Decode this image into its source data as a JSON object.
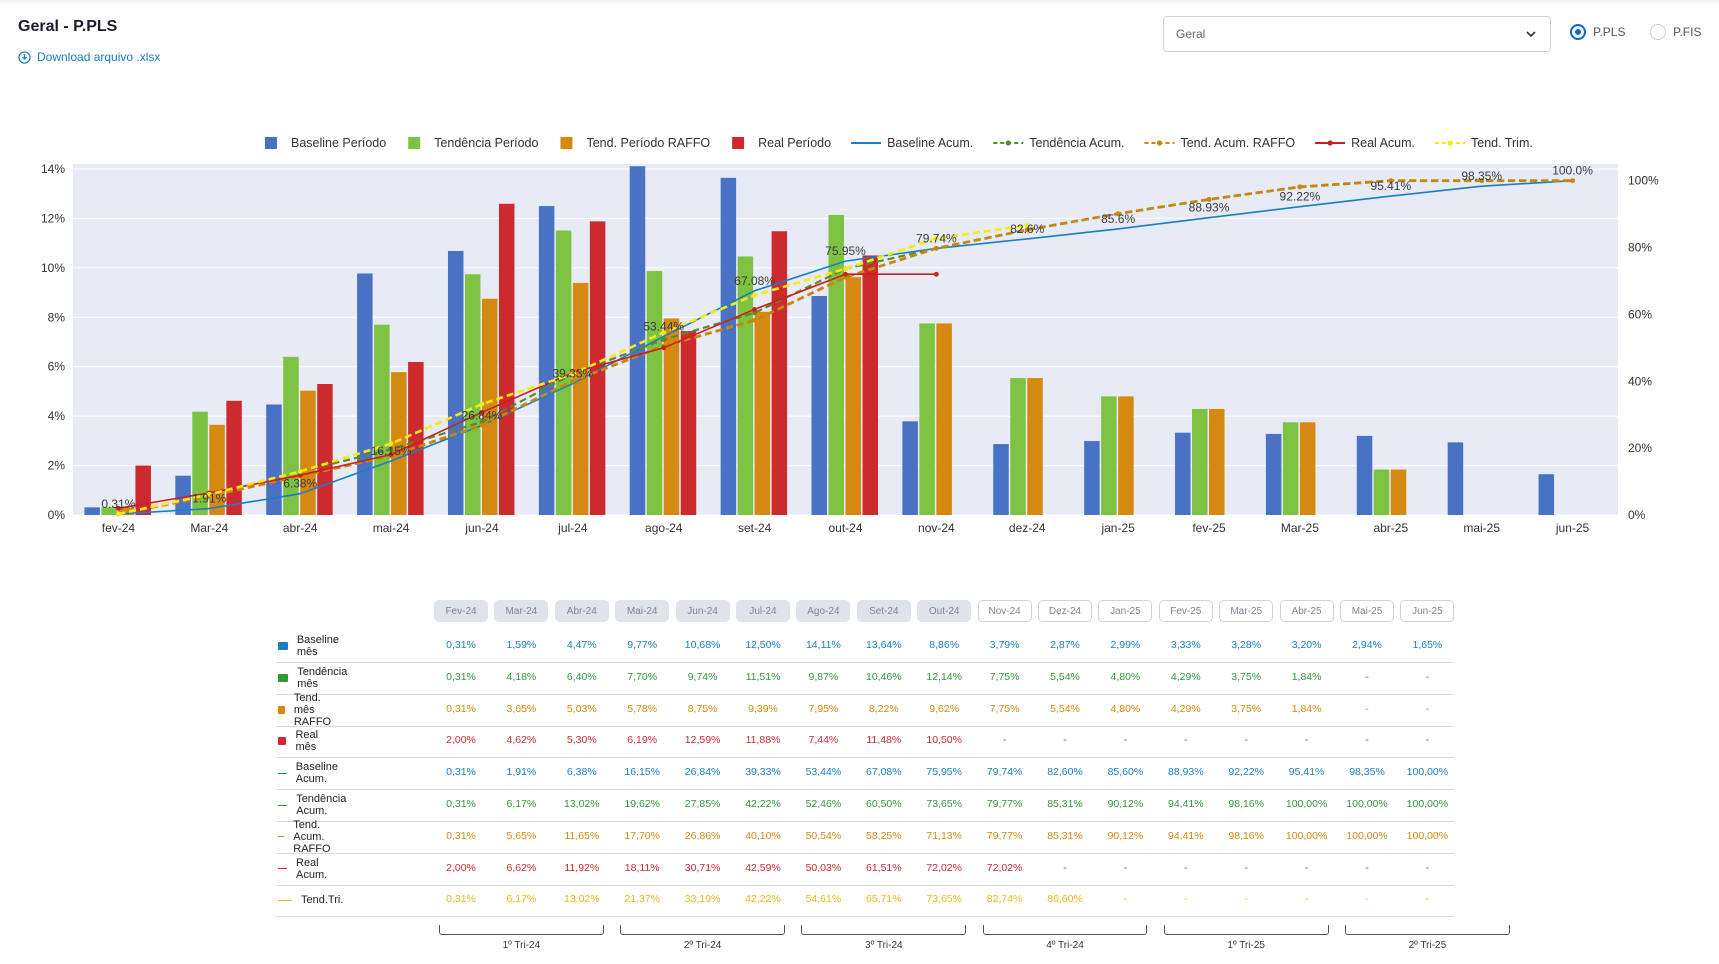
{
  "header": {
    "title": "Geral - P.PLS",
    "download_label": "Download arquivo .xlsx",
    "select_value": "Geral",
    "radio_options": [
      {
        "label": "P.PLS",
        "selected": true
      },
      {
        "label": "P.FIS",
        "selected": false
      }
    ]
  },
  "colors": {
    "baseline": "#4a72c4",
    "tendencia": "#7dc240",
    "raffo": "#d68910",
    "real": "#cc2a2f",
    "baseline_acum": "#1a7fc1",
    "tendencia_acum": "#5a8a2c",
    "raffo_acum": "#c8860f",
    "real_acum": "#cc1f1f",
    "trim": "#f5ea14",
    "plot_bg": "#e6ebf5",
    "table_baseline": "#1a7fc1",
    "table_tendencia": "#2f9a36",
    "table_raffo": "#d68910",
    "table_real": "#cc2a2f",
    "table_trim": "#e8b81a"
  },
  "chart_data": {
    "type": "bar",
    "categories": [
      "fev-24",
      "Mar-24",
      "abr-24",
      "mai-24",
      "jun-24",
      "jul-24",
      "ago-24",
      "set-24",
      "out-24",
      "nov-24",
      "dez-24",
      "jan-25",
      "fev-25",
      "Mar-25",
      "abr-25",
      "mai-25",
      "jun-25"
    ],
    "y_left": {
      "ticks": [
        "0%",
        "2%",
        "4%",
        "6%",
        "8%",
        "10%",
        "12%",
        "14%"
      ],
      "range": [
        0,
        14.2
      ]
    },
    "y_right": {
      "ticks": [
        "0%",
        "20%",
        "40%",
        "60%",
        "80%",
        "100%"
      ],
      "range": [
        0,
        105
      ]
    },
    "legend": [
      "Baseline Período",
      "Tendência Período",
      "Tend. Período RAFFO",
      "Real Período",
      "Baseline Acum.",
      "Tendência Acum.",
      "Tend. Acum. RAFFO",
      "Real Acum.",
      "Tend. Trim."
    ],
    "bars": [
      {
        "name": "Baseline Período",
        "values": [
          0.31,
          1.59,
          4.47,
          9.77,
          10.68,
          12.5,
          14.11,
          13.64,
          8.86,
          3.79,
          2.87,
          2.99,
          3.33,
          3.28,
          3.2,
          2.94,
          1.65
        ]
      },
      {
        "name": "Tendência Período",
        "values": [
          0.31,
          4.18,
          6.4,
          7.7,
          9.74,
          11.51,
          9.87,
          10.46,
          12.14,
          7.75,
          5.54,
          4.8,
          4.29,
          3.75,
          1.84,
          null,
          null
        ]
      },
      {
        "name": "Tend. Período RAFFO",
        "values": [
          0.31,
          3.65,
          5.03,
          5.78,
          8.75,
          9.39,
          7.95,
          8.22,
          9.62,
          7.75,
          5.54,
          4.8,
          4.29,
          3.75,
          1.84,
          null,
          null
        ]
      },
      {
        "name": "Real Período",
        "values": [
          2.0,
          4.62,
          5.3,
          6.19,
          12.59,
          11.88,
          7.44,
          11.48,
          10.5,
          null,
          null,
          null,
          null,
          null,
          null,
          null,
          null
        ]
      }
    ],
    "lines": [
      {
        "name": "Baseline Acum.",
        "values": [
          0.31,
          1.91,
          6.38,
          16.15,
          26.84,
          39.33,
          53.44,
          67.08,
          75.95,
          79.74,
          82.6,
          85.6,
          88.93,
          92.22,
          95.41,
          98.35,
          100.0
        ]
      },
      {
        "name": "Tendência Acum.",
        "values": [
          0.31,
          6.17,
          13.02,
          19.62,
          27.85,
          42.22,
          52.46,
          60.5,
          73.65,
          79.77,
          85.31,
          90.12,
          94.41,
          98.16,
          100.0,
          100.0,
          100.0
        ]
      },
      {
        "name": "Tend. Acum. RAFFO",
        "values": [
          0.31,
          5.65,
          11.65,
          17.7,
          26.86,
          40.1,
          50.54,
          58.25,
          71.13,
          79.77,
          85.31,
          90.12,
          94.41,
          98.16,
          100.0,
          100.0,
          100.0
        ]
      },
      {
        "name": "Real Acum.",
        "values": [
          2.0,
          6.62,
          11.92,
          18.11,
          30.71,
          42.59,
          50.03,
          61.51,
          72.02,
          72.02,
          null,
          null,
          null,
          null,
          null,
          null,
          null
        ]
      },
      {
        "name": "Tend. Trim.",
        "values": [
          0.31,
          6.17,
          13.02,
          21.37,
          33.19,
          42.22,
          54.61,
          65.71,
          73.65,
          82.74,
          86.6,
          null,
          null,
          null,
          null,
          null,
          null
        ]
      }
    ],
    "baseline_acum_labels": [
      "0.31%",
      "1.91%",
      "6.38%",
      "16.15%",
      "26.84%",
      "39.33%",
      "53.44%",
      "67.08%",
      "75.95%",
      "79.74%",
      "82.6%",
      "85.6%",
      "88.93%",
      "92.22%",
      "95.41%",
      "98.35%",
      "100.0%"
    ]
  },
  "table": {
    "headers": [
      "Fev-24",
      "Mar-24",
      "Abr-24",
      "Mai-24",
      "Jun-24",
      "Jul-24",
      "Ago-24",
      "Set-24",
      "Out-24",
      "Nov-24",
      "Dez-24",
      "Jan-25",
      "Fev-25",
      "Mar-25",
      "Abr-25",
      "Mai-25",
      "Jun-25"
    ],
    "past_count": 9,
    "rows": [
      {
        "label": "Baseline mês",
        "kind": "swatch",
        "color_key": "table_baseline",
        "values": [
          "0,31%",
          "1,59%",
          "4,47%",
          "9,77%",
          "10,68%",
          "12,50%",
          "14,11%",
          "13,64%",
          "8,86%",
          "3,79%",
          "2,87%",
          "2,99%",
          "3,33%",
          "3,28%",
          "3,20%",
          "2,94%",
          "1,65%"
        ]
      },
      {
        "label": "Tendência mês",
        "kind": "swatch",
        "color_key": "table_tendencia",
        "values": [
          "0,31%",
          "4,18%",
          "6,40%",
          "7,70%",
          "9,74%",
          "11,51%",
          "9,87%",
          "10,46%",
          "12,14%",
          "7,75%",
          "5,54%",
          "4,80%",
          "4,29%",
          "3,75%",
          "1,84%",
          "-",
          "-"
        ]
      },
      {
        "label": "Tend. mês RAFFO",
        "kind": "swatch",
        "color_key": "table_raffo",
        "values": [
          "0,31%",
          "3,65%",
          "5,03%",
          "5,78%",
          "8,75%",
          "9,39%",
          "7,95%",
          "8,22%",
          "9,62%",
          "7,75%",
          "5,54%",
          "4,80%",
          "4,29%",
          "3,75%",
          "1,84%",
          "-",
          "-"
        ]
      },
      {
        "label": "Real mês",
        "kind": "swatch",
        "color_key": "table_real",
        "values": [
          "2,00%",
          "4,62%",
          "5,30%",
          "6,19%",
          "12,59%",
          "11,88%",
          "7,44%",
          "11,48%",
          "10,50%",
          "-",
          "-",
          "-",
          "-",
          "-",
          "-",
          "-",
          "-"
        ]
      },
      {
        "label": "Baseline Acum.",
        "kind": "line",
        "color_key": "table_baseline",
        "values": [
          "0,31%",
          "1,91%",
          "6,38%",
          "16,15%",
          "26,84%",
          "39,33%",
          "53,44%",
          "67,08%",
          "75,95%",
          "79,74%",
          "82,60%",
          "85,60%",
          "88,93%",
          "92,22%",
          "95,41%",
          "98,35%",
          "100,00%"
        ]
      },
      {
        "label": "Tendência Acum.",
        "kind": "line",
        "color_key": "table_tendencia",
        "values": [
          "0,31%",
          "6,17%",
          "13,02%",
          "19,62%",
          "27,85%",
          "42,22%",
          "52,46%",
          "60,50%",
          "73,65%",
          "79,77%",
          "85,31%",
          "90,12%",
          "94,41%",
          "98,16%",
          "100,00%",
          "100,00%",
          "100,00%"
        ]
      },
      {
        "label": "Tend. Acum. RAFFO",
        "kind": "line",
        "color_key": "table_raffo",
        "values": [
          "0,31%",
          "5,65%",
          "11,65%",
          "17,70%",
          "26,86%",
          "40,10%",
          "50,54%",
          "58,25%",
          "71,13%",
          "79,77%",
          "85,31%",
          "90,12%",
          "94,41%",
          "98,16%",
          "100,00%",
          "100,00%",
          "100,00%"
        ]
      },
      {
        "label": "Real Acum.",
        "kind": "line",
        "color_key": "table_real",
        "values": [
          "2,00%",
          "6,62%",
          "11,92%",
          "18,11%",
          "30,71%",
          "42,59%",
          "50,03%",
          "61,51%",
          "72,02%",
          "72,02%",
          "-",
          "-",
          "-",
          "-",
          "-",
          "-",
          "-"
        ]
      },
      {
        "label": "Tend.Tri.",
        "kind": "line",
        "color_key": "table_trim",
        "values": [
          "0,31%",
          "6,17%",
          "13,02%",
          "21,37%",
          "33,19%",
          "42,22%",
          "54,61%",
          "65,71%",
          "73,65%",
          "82,74%",
          "86,60%",
          "-",
          "-",
          "-",
          "-",
          "-",
          "-"
        ]
      }
    ],
    "quarters": [
      "1º Tri-24",
      "2º Tri-24",
      "3º Tri-24",
      "4º Tri-24",
      "1º Tri-25",
      "2º Tri-25"
    ]
  }
}
